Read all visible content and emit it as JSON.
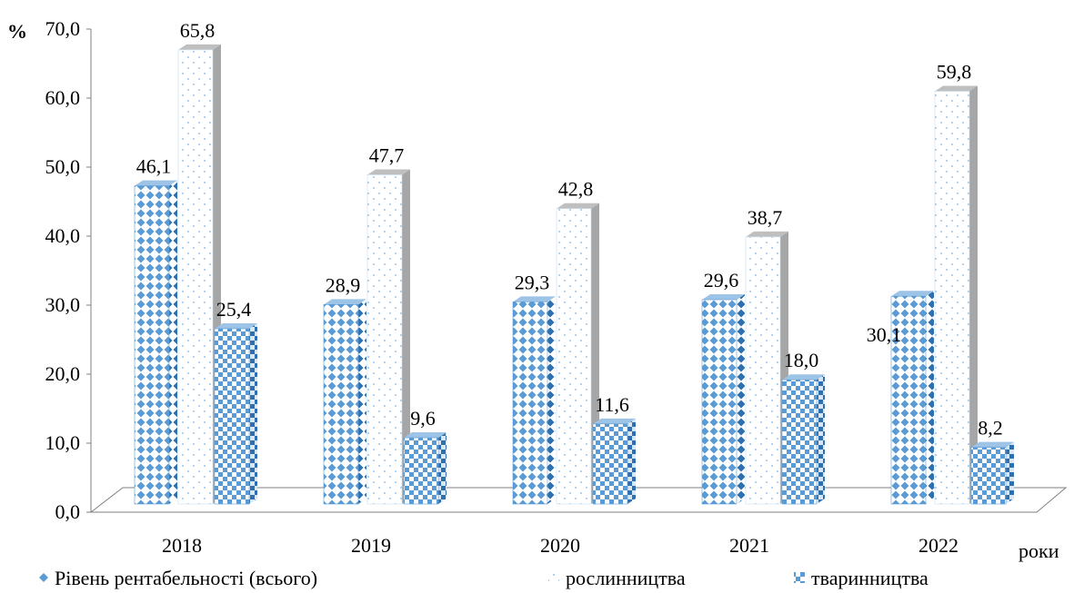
{
  "chart_data": {
    "type": "bar",
    "y_unit": "%",
    "x_axis_label": "роки",
    "categories": [
      "2018",
      "2019",
      "2020",
      "2021",
      "2022"
    ],
    "yticks": [
      "0,0",
      "10,0",
      "20,0",
      "30,0",
      "40,0",
      "50,0",
      "60,0",
      "70,0"
    ],
    "ylim": [
      0,
      70
    ],
    "series": [
      {
        "name": "Рівень рентабельності (всього)",
        "values": [
          46.1,
          28.9,
          29.3,
          29.6,
          30.1
        ],
        "labels": [
          "46,1",
          "28,9",
          "29,3",
          "29,6",
          "30,1"
        ],
        "color": "#5b9bd5"
      },
      {
        "name": "рослинництва",
        "values": [
          65.8,
          47.7,
          42.8,
          38.7,
          59.8
        ],
        "labels": [
          "65,8",
          "47,7",
          "42,8",
          "38,7",
          "59,8"
        ],
        "color": "#9dc3e6"
      },
      {
        "name": "тваринництва",
        "values": [
          25.4,
          9.6,
          11.6,
          18.0,
          8.2
        ],
        "labels": [
          "25,4",
          "9,6",
          "11,6",
          "18,0",
          "8,2"
        ],
        "color": "#5b9bd5"
      }
    ],
    "grid": false,
    "style": "3d-clustered-column",
    "legend": "bottom"
  }
}
